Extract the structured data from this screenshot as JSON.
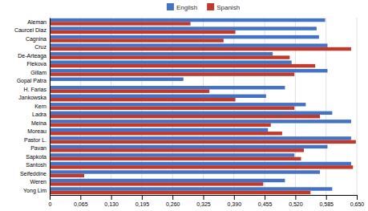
{
  "chart_data": {
    "type": "bar",
    "orientation": "horizontal",
    "categories": [
      "Aleman",
      "Caurcel Diaz",
      "Cagnina",
      "Cruz",
      "De-Arteaga",
      "Flekova",
      "Gillam",
      "Gopal Patra",
      "H. Farias",
      "Jankowska",
      "Kern",
      "Ladra",
      "Meina",
      "Moreau",
      "Pastor L.",
      "Pavan",
      "Sapkota",
      "Santosh",
      "Seifeddine",
      "Weren",
      "Yong Lim"
    ],
    "series": [
      {
        "name": "English",
        "color": "#4472c4",
        "values": [
          0.583,
          0.565,
          0.57,
          0.588,
          0.472,
          0.512,
          0.588,
          0.283,
          0.498,
          0.458,
          0.542,
          0.598,
          0.638,
          0.462,
          0.638,
          0.588,
          0.518,
          0.638,
          0.572,
          0.498,
          0.598
        ]
      },
      {
        "name": "Spanish",
        "color": "#c0392b",
        "values": [
          0.298,
          0.393,
          0.368,
          0.638,
          0.508,
          0.562,
          0.518,
          0.0,
          0.338,
          0.393,
          0.518,
          0.572,
          0.468,
          0.492,
          0.648,
          0.538,
          0.532,
          0.642,
          0.073,
          0.452,
          0.552
        ]
      }
    ],
    "xlim": [
      0,
      0.65
    ],
    "xticks": [
      0,
      {
        "value": 0.065,
        "label": "0,065"
      },
      {
        "value": 0.13,
        "label": "0,130"
      },
      {
        "value": 0.195,
        "label": "0,195"
      },
      {
        "value": 0.26,
        "label": "0,260"
      },
      {
        "value": 0.325,
        "label": "0,325"
      },
      {
        "value": 0.39,
        "label": "0,390"
      },
      {
        "value": 0.455,
        "label": "0,455"
      },
      {
        "value": 0.52,
        "label": "0,520"
      },
      {
        "value": 0.585,
        "label": "0,585"
      },
      {
        "value": 0.65,
        "label": "0,650"
      }
    ],
    "grid": true,
    "legend": "top"
  }
}
